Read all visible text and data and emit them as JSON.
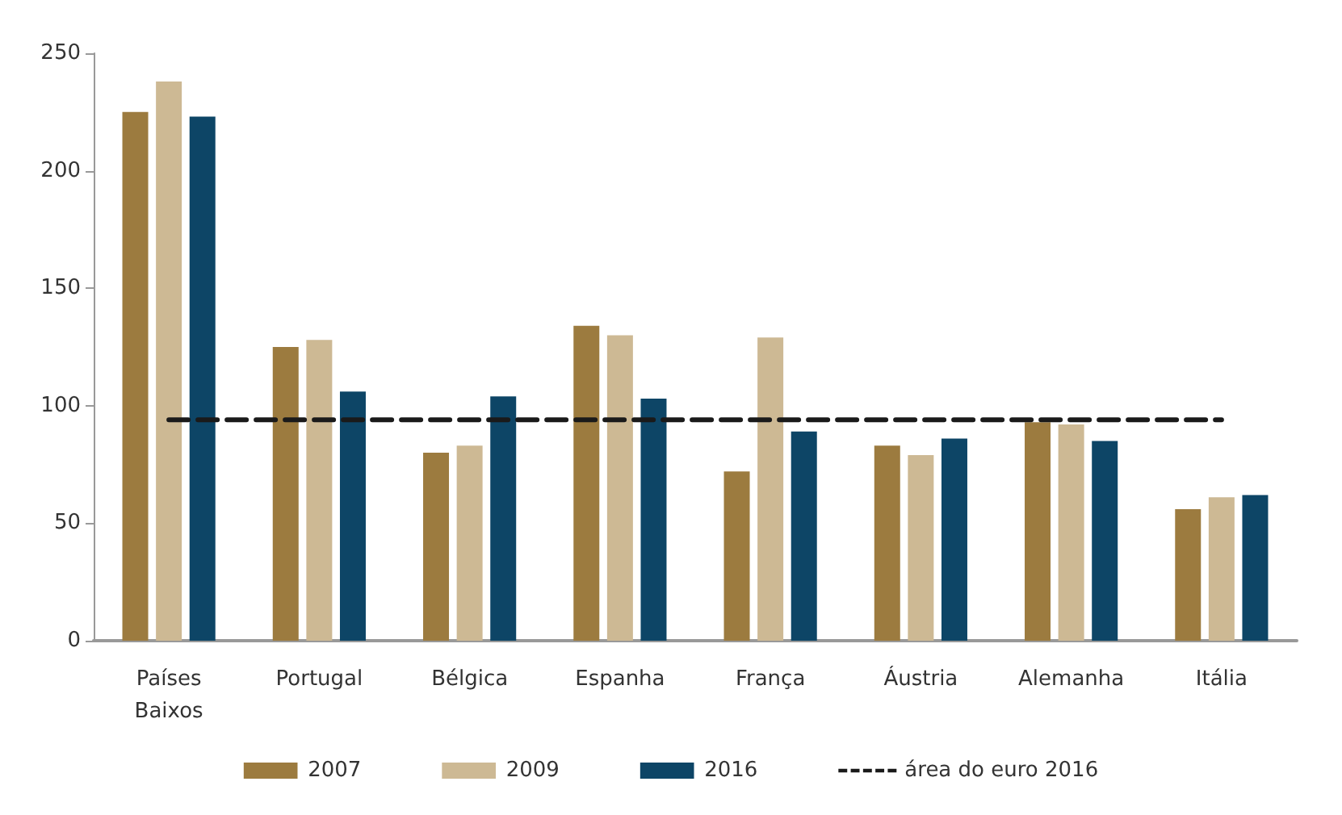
{
  "chart_data": {
    "type": "bar",
    "categories": [
      "Países\nBaixos",
      "Portugal",
      "Bélgica",
      "Espanha",
      "França",
      "Áustria",
      "Alemanha",
      "Itália"
    ],
    "series": [
      {
        "name": "2007",
        "color": "#9c7b3f",
        "values": [
          225,
          125,
          80,
          134,
          72,
          83,
          93,
          56
        ]
      },
      {
        "name": "2009",
        "color": "#cdb994",
        "values": [
          238,
          128,
          83,
          130,
          129,
          79,
          92,
          61
        ]
      },
      {
        "name": "2016",
        "color": "#0d4566",
        "values": [
          223,
          106,
          104,
          103,
          89,
          86,
          85,
          62
        ]
      },
      {
        "name": "área do euro 2016",
        "type": "line",
        "color": "#1a1a1a",
        "line_style": "dashed",
        "marker": "none",
        "values": [
          94,
          94,
          94,
          94,
          94,
          94,
          94,
          94
        ]
      }
    ],
    "ylim": [
      0,
      250
    ],
    "yticks": [
      0,
      50,
      100,
      150,
      200,
      250
    ],
    "grid": false,
    "legend": "bottom"
  }
}
